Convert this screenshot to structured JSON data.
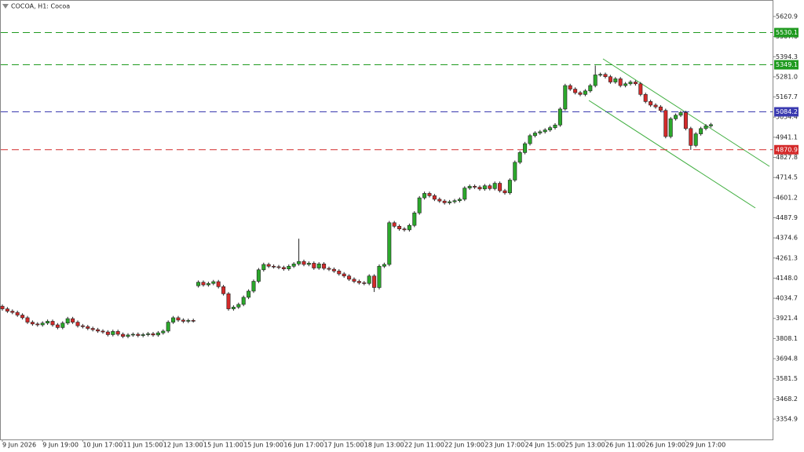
{
  "chart_data": {
    "type": "candlestick",
    "title": "COCOA, H1: Cocoa",
    "categories": [
      "9 Jun 2026",
      null,
      null,
      null,
      null,
      null,
      null,
      null,
      "9 Jun 19:00",
      null,
      null,
      null,
      null,
      null,
      null,
      null,
      "10 Jun 17:00",
      null,
      null,
      null,
      null,
      null,
      null,
      null,
      "11 Jun 15:00",
      null,
      null,
      null,
      null,
      null,
      null,
      null,
      "12 Jun 13:00",
      null,
      null,
      null,
      null,
      null,
      null,
      null,
      "15 Jun 11:00",
      null,
      null,
      null,
      null,
      null,
      null,
      null,
      "15 Jun 19:00",
      null,
      null,
      null,
      null,
      null,
      null,
      null,
      "16 Jun 17:00",
      null,
      null,
      null,
      null,
      null,
      null,
      null,
      "17 Jun 15:00",
      null,
      null,
      null,
      null,
      null,
      null,
      null,
      "18 Jun 13:00",
      null,
      null,
      null,
      null,
      null,
      null,
      null,
      "22 Jun 11:00",
      null,
      null,
      null,
      null,
      null,
      null,
      null,
      "22 Jun 19:00",
      null,
      null,
      null,
      null,
      null,
      null,
      null,
      "23 Jun 17:00",
      null,
      null,
      null,
      null,
      null,
      null,
      null,
      "24 Jun 15:00",
      null,
      null,
      null,
      null,
      null,
      null,
      null,
      "25 Jun 13:00",
      null,
      null,
      null,
      null,
      null,
      null,
      null,
      "26 Jun 11:00",
      null,
      null,
      null,
      null,
      null,
      null,
      null,
      "26 Jun 19:00",
      null,
      null,
      null,
      null,
      null,
      null,
      null,
      "29 Jun 17:00",
      null,
      null,
      null,
      null,
      null
    ],
    "open": [
      3990,
      3975,
      3962,
      3955,
      3940,
      3925,
      3900,
      3890,
      3885,
      3895,
      3905,
      3885,
      3870,
      3895,
      3920,
      3900,
      3880,
      3875,
      3865,
      3858,
      3850,
      3845,
      3830,
      3848,
      3832,
      3820,
      3828,
      3832,
      3825,
      3830,
      3835,
      3828,
      3840,
      3850,
      3900,
      3925,
      3912,
      3905,
      3910,
      4105,
      4125,
      4110,
      4118,
      4128,
      4100,
      4060,
      3975,
      3985,
      4000,
      4040,
      4075,
      4130,
      4195,
      4225,
      4215,
      4212,
      4208,
      4200,
      4215,
      4228,
      4242,
      4225,
      4232,
      4205,
      4228,
      4203,
      4198,
      4188,
      4172,
      4160,
      4142,
      4130,
      4122,
      4118,
      4160,
      4095,
      4215,
      4225,
      4460,
      4440,
      4425,
      4420,
      4445,
      4515,
      4600,
      4625,
      4612,
      4592,
      4582,
      4572,
      4578,
      4584,
      4592,
      4655,
      4665,
      4660,
      4650,
      4668,
      4652,
      4682,
      4640,
      4628,
      4700,
      4800,
      4855,
      4905,
      4950,
      4965,
      4972,
      4982,
      4995,
      5010,
      5100,
      5232,
      5212,
      5192,
      5182,
      5202,
      5232,
      5292,
      5295,
      5282,
      5252,
      5270,
      5232,
      5242,
      5252,
      5242,
      5182,
      5142,
      5122,
      5112,
      5092,
      4945,
      5045,
      5065,
      5080,
      4990,
      4895,
      4960,
      4990,
      5005
    ],
    "high": [
      4000,
      3985,
      3972,
      3965,
      3950,
      3935,
      3910,
      3900,
      3905,
      3915,
      3915,
      3895,
      3905,
      3930,
      3930,
      3910,
      3890,
      3885,
      3875,
      3868,
      3860,
      3855,
      3858,
      3858,
      3842,
      3838,
      3842,
      3842,
      3840,
      3845,
      3845,
      3850,
      3860,
      3910,
      3935,
      3935,
      3922,
      3920,
      3920,
      4135,
      4135,
      4128,
      4138,
      4138,
      4110,
      4070,
      3995,
      4010,
      4050,
      4085,
      4140,
      4205,
      4235,
      4235,
      4225,
      4222,
      4218,
      4225,
      4238,
      4370,
      4252,
      4242,
      4242,
      4238,
      4238,
      4213,
      4208,
      4198,
      4182,
      4170,
      4152,
      4140,
      4132,
      4170,
      4170,
      4225,
      4235,
      4470,
      4470,
      4450,
      4435,
      4455,
      4525,
      4610,
      4635,
      4635,
      4622,
      4602,
      4592,
      4588,
      4594,
      4602,
      4665,
      4675,
      4675,
      4670,
      4678,
      4678,
      4692,
      4692,
      4650,
      4710,
      4810,
      4865,
      4915,
      4960,
      4975,
      4982,
      4992,
      5005,
      5020,
      5110,
      5242,
      5242,
      5222,
      5202,
      5212,
      5242,
      5345,
      5305,
      5305,
      5292,
      5280,
      5280,
      5252,
      5262,
      5262,
      5252,
      5192,
      5152,
      5132,
      5122,
      5102,
      5055,
      5075,
      5090,
      5090,
      5000,
      4970,
      5000,
      5015,
      5022
    ],
    "low": [
      3965,
      3952,
      3945,
      3930,
      3915,
      3890,
      3880,
      3875,
      3875,
      3885,
      3875,
      3860,
      3860,
      3885,
      3890,
      3870,
      3865,
      3855,
      3848,
      3840,
      3835,
      3820,
      3820,
      3822,
      3810,
      3810,
      3818,
      3815,
      3815,
      3820,
      3818,
      3818,
      3830,
      3840,
      3890,
      3902,
      3895,
      3895,
      3898,
      4095,
      4100,
      4100,
      4108,
      4090,
      4050,
      3965,
      3965,
      3975,
      3990,
      4030,
      4065,
      4120,
      4185,
      4205,
      4202,
      4198,
      4190,
      4190,
      4205,
      4218,
      4215,
      4215,
      4195,
      4195,
      4193,
      4188,
      4178,
      4162,
      4150,
      4132,
      4120,
      4112,
      4108,
      4108,
      4070,
      4085,
      4205,
      4215,
      4430,
      4415,
      4410,
      4410,
      4435,
      4505,
      4590,
      4602,
      4582,
      4572,
      4562,
      4562,
      4568,
      4574,
      4582,
      4645,
      4650,
      4640,
      4640,
      4642,
      4642,
      4630,
      4618,
      4618,
      4690,
      4790,
      4845,
      4895,
      4940,
      4955,
      4962,
      4972,
      4985,
      5000,
      5090,
      5202,
      5182,
      5172,
      5172,
      5192,
      5222,
      5282,
      5272,
      5242,
      5242,
      5222,
      5222,
      5232,
      5232,
      5172,
      5132,
      5112,
      5102,
      5082,
      4935,
      4935,
      5035,
      5055,
      4980,
      4870,
      4885,
      4950,
      4980,
      4995
    ],
    "close": [
      3975,
      3962,
      3955,
      3940,
      3925,
      3900,
      3890,
      3885,
      3895,
      3905,
      3885,
      3870,
      3895,
      3920,
      3900,
      3880,
      3875,
      3865,
      3858,
      3850,
      3845,
      3830,
      3848,
      3832,
      3820,
      3828,
      3832,
      3825,
      3830,
      3835,
      3828,
      3840,
      3850,
      3900,
      3925,
      3912,
      3905,
      3910,
      3908,
      4125,
      4110,
      4118,
      4128,
      4100,
      4060,
      3975,
      3985,
      4000,
      4040,
      4075,
      4130,
      4195,
      4225,
      4215,
      4212,
      4208,
      4200,
      4215,
      4228,
      4242,
      4225,
      4232,
      4205,
      4228,
      4203,
      4198,
      4188,
      4172,
      4160,
      4142,
      4130,
      4122,
      4118,
      4160,
      4095,
      4215,
      4225,
      4460,
      4440,
      4425,
      4420,
      4445,
      4515,
      4600,
      4625,
      4612,
      4592,
      4582,
      4572,
      4578,
      4584,
      4592,
      4655,
      4665,
      4660,
      4650,
      4668,
      4652,
      4682,
      4640,
      4628,
      4700,
      4800,
      4855,
      4905,
      4950,
      4965,
      4972,
      4982,
      4995,
      5010,
      5100,
      5232,
      5212,
      5192,
      5182,
      5202,
      5232,
      5292,
      5295,
      5282,
      5252,
      5270,
      5232,
      5242,
      5252,
      5242,
      5182,
      5142,
      5122,
      5112,
      5092,
      4945,
      5045,
      5065,
      5080,
      4990,
      4895,
      4960,
      4990,
      5005,
      5012
    ],
    "up_color": "#2ba82b",
    "down_color": "#d42a2a",
    "ylim": [
      3240,
      5704.8
    ],
    "yticks": [
      5620.9,
      5507.6,
      5394.3,
      {
        "value": 5281.0,
        "label": "5281.0"
      },
      5167.7,
      5054.4,
      4941.1,
      4827.8,
      4714.5,
      4601.2,
      4487.9,
      4374.6,
      4261.3,
      {
        "value": 4148.0,
        "label": "4148.0"
      },
      4034.7,
      3921.4,
      3808.1,
      3694.8,
      3581.5,
      3468.2,
      3354.9
    ],
    "levels": [
      {
        "value": 5530.1,
        "color": "#1f9a1f"
      },
      {
        "value": 5349.1,
        "color": "#1f9a1f"
      },
      {
        "value": 5084.2,
        "color": "#3a3ab0"
      },
      {
        "value": 4870.9,
        "color": "#d42a2a"
      }
    ]
  }
}
